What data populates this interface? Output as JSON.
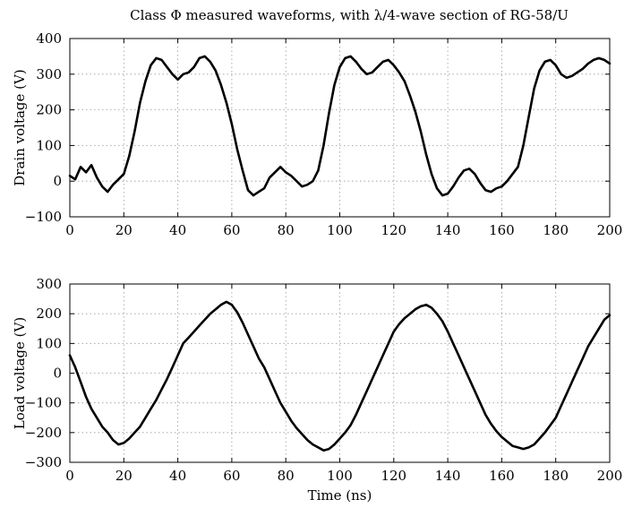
{
  "chart_data": [
    {
      "type": "line",
      "title": "Class Φ measured waveforms, with λ/4-wave section of RG-58/U",
      "xlabel": "",
      "ylabel": "Drain voltage (V)",
      "xlim": [
        0,
        200
      ],
      "ylim": [
        -100,
        400
      ],
      "xticks": [
        0,
        20,
        40,
        60,
        80,
        100,
        120,
        140,
        160,
        180,
        200
      ],
      "yticks": [
        -100,
        0,
        100,
        200,
        300,
        400
      ],
      "grid": true,
      "series": [
        {
          "x": [
            0,
            2,
            4,
            6,
            8,
            10,
            12,
            14,
            16,
            18,
            20,
            22,
            24,
            26,
            28,
            30,
            32,
            34,
            36,
            38,
            40,
            42,
            44,
            46,
            48,
            50,
            52,
            54,
            56,
            58,
            60,
            62,
            64,
            66,
            68,
            70,
            72,
            74,
            76,
            78,
            80,
            82,
            84,
            86,
            88,
            90,
            92,
            94,
            96,
            98,
            100,
            102,
            104,
            106,
            108,
            110,
            112,
            114,
            116,
            118,
            120,
            122,
            124,
            126,
            128,
            130,
            132,
            134,
            136,
            138,
            140,
            142,
            144,
            146,
            148,
            150,
            152,
            154,
            156,
            158,
            160,
            162,
            164,
            166,
            168,
            170,
            172,
            174,
            176,
            178,
            180,
            182,
            184,
            186,
            188,
            190,
            192,
            194,
            196,
            198,
            200
          ],
          "y": [
            15,
            5,
            40,
            25,
            45,
            10,
            -15,
            -30,
            -10,
            5,
            20,
            70,
            140,
            220,
            280,
            325,
            345,
            340,
            320,
            300,
            285,
            300,
            305,
            320,
            345,
            350,
            335,
            310,
            270,
            220,
            160,
            90,
            30,
            -25,
            -40,
            -30,
            -20,
            10,
            25,
            40,
            25,
            15,
            0,
            -15,
            -10,
            0,
            30,
            100,
            190,
            270,
            320,
            345,
            350,
            335,
            315,
            300,
            305,
            320,
            335,
            340,
            325,
            305,
            280,
            240,
            195,
            140,
            75,
            20,
            -20,
            -40,
            -35,
            -15,
            10,
            30,
            35,
            20,
            -5,
            -25,
            -30,
            -20,
            -15,
            0,
            20,
            40,
            100,
            180,
            260,
            310,
            335,
            340,
            325,
            300,
            290,
            295,
            305,
            315,
            330,
            340,
            345,
            340,
            330
          ]
        }
      ]
    },
    {
      "type": "line",
      "title": "",
      "xlabel": "Time (ns)",
      "ylabel": "Load voltage (V)",
      "xlim": [
        0,
        200
      ],
      "ylim": [
        -300,
        300
      ],
      "xticks": [
        0,
        20,
        40,
        60,
        80,
        100,
        120,
        140,
        160,
        180,
        200
      ],
      "yticks": [
        -300,
        -200,
        -100,
        0,
        100,
        200,
        300
      ],
      "grid": true,
      "series": [
        {
          "x": [
            0,
            2,
            4,
            6,
            8,
            10,
            12,
            14,
            16,
            18,
            20,
            22,
            24,
            26,
            28,
            30,
            32,
            34,
            36,
            38,
            40,
            42,
            44,
            46,
            48,
            50,
            52,
            54,
            56,
            58,
            60,
            62,
            64,
            66,
            68,
            70,
            72,
            74,
            76,
            78,
            80,
            82,
            84,
            86,
            88,
            90,
            92,
            94,
            96,
            98,
            100,
            102,
            104,
            106,
            108,
            110,
            112,
            114,
            116,
            118,
            120,
            122,
            124,
            126,
            128,
            130,
            132,
            134,
            136,
            138,
            140,
            142,
            144,
            146,
            148,
            150,
            152,
            154,
            156,
            158,
            160,
            162,
            164,
            166,
            168,
            170,
            172,
            174,
            176,
            178,
            180,
            182,
            184,
            186,
            188,
            190,
            192,
            194,
            196,
            198,
            200
          ],
          "y": [
            60,
            20,
            -30,
            -80,
            -120,
            -150,
            -180,
            -200,
            -225,
            -240,
            -235,
            -220,
            -200,
            -180,
            -150,
            -120,
            -90,
            -55,
            -20,
            20,
            60,
            100,
            120,
            140,
            160,
            180,
            200,
            215,
            230,
            240,
            230,
            205,
            170,
            130,
            90,
            50,
            20,
            -20,
            -60,
            -100,
            -130,
            -160,
            -185,
            -205,
            -225,
            -240,
            -250,
            -260,
            -255,
            -240,
            -220,
            -200,
            -175,
            -140,
            -100,
            -60,
            -20,
            20,
            60,
            100,
            140,
            165,
            185,
            200,
            215,
            225,
            230,
            220,
            200,
            175,
            140,
            100,
            60,
            20,
            -20,
            -60,
            -100,
            -140,
            -170,
            -195,
            -215,
            -230,
            -245,
            -250,
            -255,
            -250,
            -240,
            -220,
            -200,
            -175,
            -150,
            -110,
            -70,
            -30,
            10,
            50,
            90,
            120,
            150,
            180,
            195
          ]
        }
      ]
    }
  ]
}
